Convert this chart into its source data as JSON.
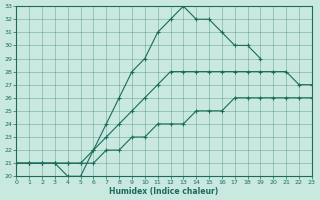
{
  "xlabel": "Humidex (Indice chaleur)",
  "ylabel": "",
  "xlim": [
    0,
    23
  ],
  "ylim": [
    20,
    33
  ],
  "xticks": [
    0,
    1,
    2,
    3,
    4,
    5,
    6,
    7,
    8,
    9,
    10,
    11,
    12,
    13,
    14,
    15,
    16,
    17,
    18,
    19,
    20,
    21,
    22,
    23
  ],
  "yticks": [
    20,
    21,
    22,
    23,
    24,
    25,
    26,
    27,
    28,
    29,
    30,
    31,
    32,
    33
  ],
  "bg_color": "#c8e8e0",
  "line_color": "#1a6b5a",
  "curve1_x": [
    0,
    1,
    2,
    3,
    4,
    5,
    6,
    7,
    8,
    9,
    10,
    11,
    12,
    13,
    14,
    15,
    16,
    17,
    18,
    19
  ],
  "curve1_y": [
    21,
    21,
    21,
    21,
    20,
    20,
    22,
    24,
    26,
    28,
    29,
    31,
    32,
    33,
    32,
    32,
    31,
    30,
    30,
    29
  ],
  "curve2_x": [
    0,
    1,
    2,
    3,
    4,
    5,
    6,
    7,
    8,
    9,
    10,
    11,
    12,
    13,
    14,
    15,
    16,
    17,
    18,
    19,
    20,
    21,
    22,
    23
  ],
  "curve2_y": [
    21,
    21,
    21,
    21,
    21,
    21,
    22,
    23,
    24,
    25,
    26,
    27,
    28,
    28,
    28,
    28,
    28,
    28,
    28,
    28,
    28,
    28,
    27,
    27
  ],
  "curve3_x": [
    0,
    1,
    2,
    3,
    4,
    5,
    6,
    7,
    8,
    9,
    10,
    11,
    12,
    13,
    14,
    15,
    16,
    17,
    18,
    19,
    20,
    21,
    22,
    23
  ],
  "curve3_y": [
    21,
    21,
    21,
    21,
    21,
    21,
    21,
    22,
    22,
    23,
    23,
    24,
    24,
    24,
    25,
    25,
    25,
    26,
    26,
    26,
    26,
    26,
    26,
    26
  ]
}
